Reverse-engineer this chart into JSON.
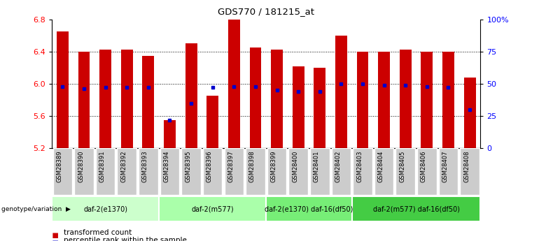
{
  "title": "GDS770 / 181215_at",
  "samples": [
    "GSM28389",
    "GSM28390",
    "GSM28391",
    "GSM28392",
    "GSM28393",
    "GSM28394",
    "GSM28395",
    "GSM28396",
    "GSM28397",
    "GSM28398",
    "GSM28399",
    "GSM28400",
    "GSM28401",
    "GSM28402",
    "GSM28403",
    "GSM28404",
    "GSM28405",
    "GSM28406",
    "GSM28407",
    "GSM28408"
  ],
  "bar_values": [
    6.65,
    6.4,
    6.42,
    6.42,
    6.35,
    5.55,
    6.5,
    5.85,
    6.8,
    6.45,
    6.42,
    6.22,
    6.2,
    6.6,
    6.4,
    6.4,
    6.42,
    6.4,
    6.4,
    6.08
  ],
  "percentile_values": [
    48,
    46,
    47,
    47,
    47,
    22,
    35,
    47,
    48,
    48,
    45,
    44,
    44,
    50,
    50,
    49,
    49,
    48,
    47,
    30
  ],
  "ymin": 5.2,
  "ymax": 6.8,
  "yticks": [
    5.2,
    5.6,
    6.0,
    6.4,
    6.8
  ],
  "right_yticks": [
    0,
    25,
    50,
    75,
    100
  ],
  "bar_color": "#CC0000",
  "dot_color": "#0000CC",
  "groups": [
    {
      "label": "daf-2(e1370)",
      "start": 0,
      "end": 5,
      "color": "#ccffcc"
    },
    {
      "label": "daf-2(m577)",
      "start": 5,
      "end": 10,
      "color": "#aaffaa"
    },
    {
      "label": "daf-2(e1370) daf-16(df50)",
      "start": 10,
      "end": 14,
      "color": "#77ee77"
    },
    {
      "label": "daf-2(m577) daf-16(df50)",
      "start": 14,
      "end": 20,
      "color": "#44cc44"
    }
  ],
  "legend_items": [
    {
      "label": "transformed count",
      "color": "#CC0000"
    },
    {
      "label": "percentile rank within the sample",
      "color": "#0000CC"
    }
  ],
  "bar_width": 0.55,
  "group_label_text": "genotype/variation",
  "background_color": "#ffffff"
}
